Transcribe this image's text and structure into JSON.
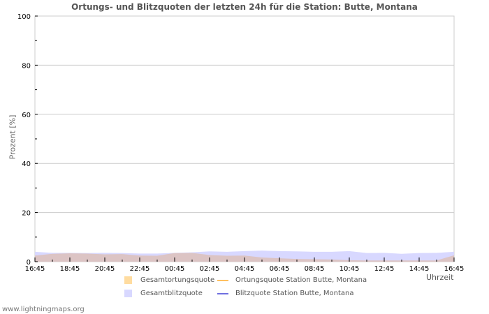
{
  "header": {
    "title": "Ortungs- und Blitzquoten der letzten 24h für die Station: Butte, Montana"
  },
  "footer": {
    "url_text": "www.lightningmaps.org"
  },
  "legend": {
    "items": [
      {
        "label": "Gesamtortungsquote",
        "type": "area",
        "color": "#ffdca0"
      },
      {
        "label": "Ortungsquote Station Butte, Montana",
        "type": "line",
        "color": "#ffc060"
      },
      {
        "label": "Gesamtblitzquote",
        "type": "area",
        "color": "#d8d8ff"
      },
      {
        "label": "Blitzquote Station Butte, Montana",
        "type": "line",
        "color": "#7070e0"
      }
    ]
  },
  "chart_data": {
    "type": "area",
    "title": "Ortungs- und Blitzquoten der letzten 24h für die Station: Butte, Montana",
    "xlabel": "Uhrzeit",
    "ylabel": "Prozent   [%]",
    "ylim": [
      0,
      100
    ],
    "yticks": [
      0,
      20,
      40,
      60,
      80,
      100
    ],
    "xtick_labels": [
      "16:45",
      "18:45",
      "20:45",
      "22:45",
      "00:45",
      "02:45",
      "04:45",
      "06:45",
      "08:45",
      "10:45",
      "12:45",
      "14:45",
      "16:45"
    ],
    "grid": true,
    "legend_position": "bottom",
    "x": [
      "16:45",
      "17:45",
      "18:45",
      "19:45",
      "20:45",
      "21:45",
      "22:45",
      "23:45",
      "00:45",
      "01:45",
      "02:45",
      "03:45",
      "04:45",
      "05:45",
      "06:45",
      "07:45",
      "08:45",
      "09:45",
      "10:45",
      "11:45",
      "12:45",
      "13:45",
      "14:45",
      "15:45",
      "16:45"
    ],
    "series": [
      {
        "name": "Gesamtblitzquote",
        "color": "#d8d8ff",
        "values": [
          4.0,
          3.6,
          3.6,
          3.5,
          3.6,
          3.5,
          3.3,
          3.3,
          3.6,
          3.8,
          4.2,
          4.0,
          4.3,
          4.5,
          4.3,
          4.2,
          4.0,
          4.0,
          4.3,
          3.5,
          3.6,
          3.2,
          3.5,
          3.6,
          4.0
        ]
      },
      {
        "name": "Gesamtortungsquote",
        "color": "#dcc4c4",
        "values": [
          2.5,
          3.2,
          3.4,
          3.3,
          3.0,
          3.1,
          2.5,
          2.4,
          3.5,
          3.6,
          2.7,
          2.4,
          2.5,
          1.7,
          1.4,
          1.1,
          1.0,
          0.9,
          0.6,
          0.5,
          0.5,
          0.5,
          0.5,
          0.5,
          2.6
        ]
      },
      {
        "name": "Ortungsquote Station Butte, Montana",
        "color": "#ffc060",
        "values": []
      },
      {
        "name": "Blitzquote Station Butte, Montana",
        "color": "#7070e0",
        "values": []
      }
    ]
  }
}
